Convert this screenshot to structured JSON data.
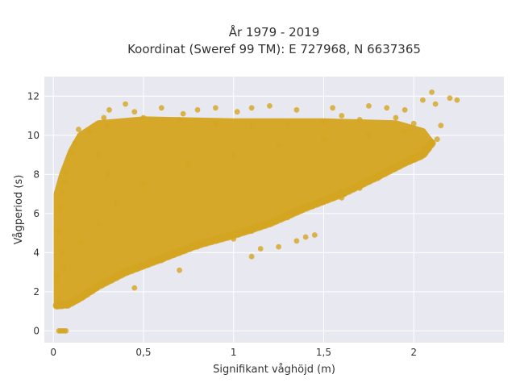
{
  "chart_data": {
    "type": "scatter",
    "title_line1": "År 1979 - 2019",
    "title_line2": "Koordinat (Sweref 99 TM): E 727968, N 6637365",
    "xlabel": "Signifikant våghöjd (m)",
    "ylabel": "Vågperiod (s)",
    "xlim": [
      -0.05,
      2.5
    ],
    "ylim": [
      -0.6,
      13
    ],
    "x_ticks": [
      0,
      0.5,
      1,
      1.5,
      2
    ],
    "x_tick_labels": [
      "0",
      "0,5",
      "1",
      "1,5",
      "2"
    ],
    "y_ticks": [
      0,
      2,
      4,
      6,
      8,
      10,
      12
    ],
    "y_tick_labels": [
      "0",
      "2",
      "4",
      "6",
      "8",
      "10",
      "12"
    ],
    "grid": true,
    "marker_color": "#D4A520",
    "plot_background": "#E8E8F0",
    "points": [
      [
        0.03,
        0.0
      ],
      [
        0.04,
        0.0
      ],
      [
        0.05,
        0.0
      ],
      [
        0.06,
        0.0
      ],
      [
        0.07,
        0.0
      ],
      [
        0.02,
        2.8
      ],
      [
        0.02,
        2.5
      ],
      [
        0.03,
        1.6
      ],
      [
        0.03,
        5.1
      ],
      [
        0.04,
        6.3
      ],
      [
        0.05,
        7.1
      ],
      [
        0.06,
        7.6
      ],
      [
        0.07,
        8.1
      ],
      [
        0.1,
        9.1
      ],
      [
        0.12,
        9.6
      ],
      [
        0.14,
        10.3
      ],
      [
        0.28,
        10.9
      ],
      [
        0.31,
        11.3
      ],
      [
        0.4,
        11.6
      ],
      [
        0.45,
        11.2
      ],
      [
        0.6,
        11.4
      ],
      [
        0.72,
        11.1
      ],
      [
        0.8,
        11.3
      ],
      [
        0.9,
        11.4
      ],
      [
        1.02,
        11.2
      ],
      [
        1.1,
        11.4
      ],
      [
        1.2,
        11.5
      ],
      [
        1.35,
        11.3
      ],
      [
        1.55,
        11.4
      ],
      [
        1.6,
        11.0
      ],
      [
        1.75,
        11.5
      ],
      [
        1.85,
        11.4
      ],
      [
        1.95,
        11.3
      ],
      [
        2.05,
        11.8
      ],
      [
        2.1,
        12.2
      ],
      [
        2.12,
        11.6
      ],
      [
        2.2,
        11.9
      ],
      [
        2.24,
        11.8
      ],
      [
        2.15,
        10.5
      ],
      [
        2.13,
        9.8
      ],
      [
        2.05,
        9.3
      ],
      [
        1.98,
        8.9
      ],
      [
        1.9,
        8.3
      ],
      [
        1.8,
        7.8
      ],
      [
        1.7,
        7.3
      ],
      [
        1.6,
        6.8
      ],
      [
        1.5,
        6.6
      ],
      [
        1.4,
        6.3
      ],
      [
        1.3,
        5.8
      ],
      [
        1.2,
        5.5
      ],
      [
        1.1,
        5.1
      ],
      [
        1.0,
        4.7
      ],
      [
        0.9,
        4.6
      ],
      [
        0.8,
        4.3
      ],
      [
        0.7,
        4.0
      ],
      [
        0.6,
        3.6
      ],
      [
        0.5,
        3.3
      ],
      [
        0.4,
        3.0
      ],
      [
        0.3,
        2.6
      ],
      [
        0.2,
        2.0
      ],
      [
        0.12,
        1.5
      ],
      [
        0.08,
        1.3
      ],
      [
        0.7,
        3.1
      ],
      [
        1.1,
        3.8
      ],
      [
        1.15,
        4.2
      ],
      [
        1.4,
        4.8
      ],
      [
        1.45,
        4.9
      ],
      [
        1.35,
        4.6
      ],
      [
        1.25,
        4.3
      ],
      [
        0.45,
        2.2
      ],
      [
        0.05,
        4.0
      ],
      [
        0.06,
        3.2
      ],
      [
        0.15,
        4.5
      ],
      [
        0.25,
        5.5
      ],
      [
        0.35,
        6.5
      ],
      [
        0.5,
        7.5
      ],
      [
        0.75,
        8.5
      ],
      [
        1.0,
        9.0
      ],
      [
        1.25,
        9.5
      ],
      [
        1.5,
        9.8
      ],
      [
        1.75,
        10.0
      ],
      [
        1.95,
        10.2
      ],
      [
        2.0,
        10.6
      ],
      [
        1.9,
        10.9
      ],
      [
        1.7,
        10.8
      ],
      [
        1.5,
        10.7
      ],
      [
        1.3,
        10.6
      ],
      [
        1.1,
        10.5
      ],
      [
        0.9,
        10.6
      ],
      [
        0.7,
        10.8
      ],
      [
        0.5,
        10.9
      ],
      [
        0.3,
        10.5
      ],
      [
        0.2,
        10.2
      ],
      [
        0.25,
        9.0
      ],
      [
        0.3,
        8.0
      ]
    ]
  }
}
